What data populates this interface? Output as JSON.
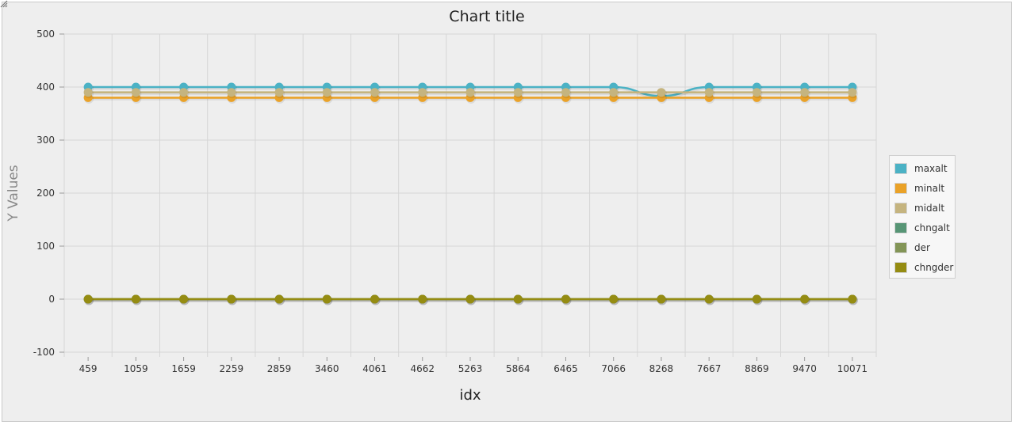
{
  "chart_data": {
    "type": "line",
    "title": "Chart title",
    "xlabel": "idx",
    "ylabel": "Y Values",
    "ylim": [
      -100,
      500
    ],
    "yticks": [
      -100,
      0,
      100,
      200,
      300,
      400,
      500
    ],
    "categories": [
      "459",
      "1059",
      "1659",
      "2259",
      "2859",
      "3460",
      "4061",
      "4662",
      "5263",
      "5864",
      "6465",
      "7066",
      "8268",
      "7667",
      "8869",
      "9470",
      "10071"
    ],
    "grid": true,
    "legend_position": "right",
    "series": [
      {
        "name": "maxalt",
        "color": "#4bb2c5",
        "values": [
          400,
          400,
          400,
          400,
          400,
          400,
          400,
          400,
          400,
          400,
          400,
          400,
          383,
          400,
          400,
          400,
          400
        ]
      },
      {
        "name": "minalt",
        "color": "#eaa228",
        "values": [
          380,
          380,
          380,
          380,
          380,
          380,
          380,
          380,
          380,
          380,
          380,
          380,
          380,
          380,
          380,
          380,
          380
        ]
      },
      {
        "name": "midalt",
        "color": "#c5b47f",
        "values": [
          390,
          390,
          390,
          390,
          390,
          390,
          390,
          390,
          390,
          390,
          390,
          390,
          390,
          390,
          390,
          390,
          390
        ]
      },
      {
        "name": "chngalt",
        "color": "#579575",
        "values": [
          0,
          0,
          0,
          0,
          0,
          0,
          0,
          0,
          0,
          0,
          0,
          0,
          0,
          0,
          0,
          0,
          0
        ]
      },
      {
        "name": "der",
        "color": "#839557",
        "values": [
          0,
          0,
          0,
          0,
          0,
          0,
          0,
          0,
          0,
          0,
          0,
          0,
          0,
          0,
          0,
          0,
          0
        ]
      },
      {
        "name": "chngder",
        "color": "#958c12",
        "values": [
          0,
          0,
          0,
          0,
          0,
          0,
          0,
          0,
          0,
          0,
          0,
          0,
          0,
          0,
          0,
          0,
          0
        ]
      }
    ]
  },
  "resize_grip_icon": "resize-grip-icon"
}
